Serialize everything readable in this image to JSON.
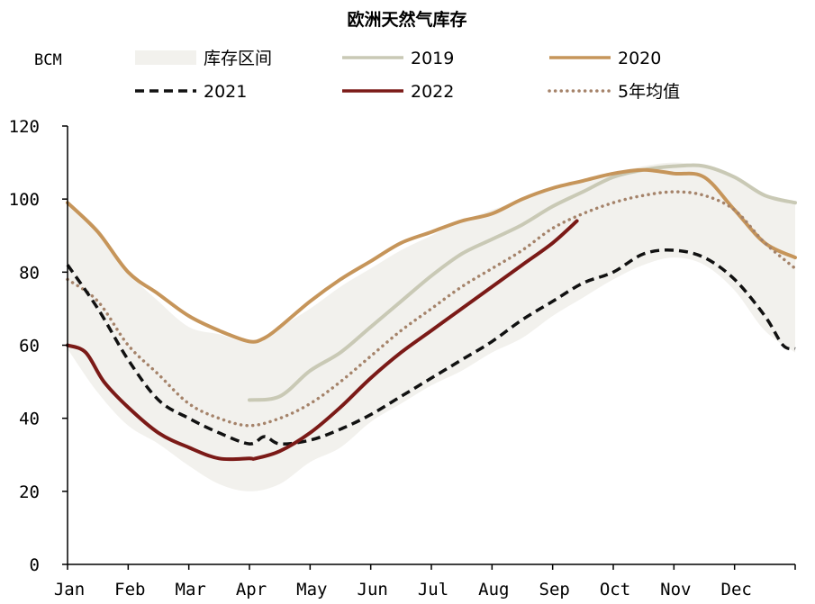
{
  "chart_data": {
    "type": "line",
    "title": "欧洲天然气库存",
    "unit_label": "BCM",
    "ylim": [
      0,
      120
    ],
    "yticks": [
      "0",
      "20",
      "40",
      "60",
      "80",
      "100",
      "120"
    ],
    "xlim": [
      0,
      12
    ],
    "categories": [
      "Jan",
      "Feb",
      "Mar",
      "Apr",
      "May",
      "Jun",
      "Jul",
      "Aug",
      "Sep",
      "Oct",
      "Nov",
      "Dec"
    ],
    "grid": false,
    "legend_position": "top",
    "legend": [
      {
        "label": "库存区间",
        "series": "range",
        "style": "band",
        "color": "#f2f1ed"
      },
      {
        "label": "2019",
        "series": "2019",
        "style": "solid",
        "color": "#c9c9b5"
      },
      {
        "label": "2020",
        "series": "2020",
        "style": "solid",
        "color": "#c6955a"
      },
      {
        "label": "2021",
        "series": "2021",
        "style": "dashed",
        "color": "#111111"
      },
      {
        "label": "2022",
        "series": "2022",
        "style": "solid",
        "color": "#7b1a17"
      },
      {
        "label": "5年均值",
        "series": "avg5",
        "style": "dotted",
        "color": "#a5836a"
      }
    ],
    "range_band": {
      "x": [
        0.0,
        0.5,
        1.0,
        1.5,
        2.0,
        2.5,
        3.0,
        3.5,
        4.0,
        4.5,
        5.0,
        5.5,
        6.0,
        6.5,
        7.0,
        7.5,
        8.0,
        8.5,
        9.0,
        9.5,
        10.0,
        10.5,
        11.0,
        11.5,
        12.0
      ],
      "upper": [
        99,
        92,
        80,
        72,
        65,
        63,
        61,
        65,
        70,
        76,
        81,
        86,
        90,
        94,
        97,
        100,
        103,
        105,
        107,
        109,
        110,
        109,
        106,
        101,
        99
      ],
      "lower": [
        59,
        47,
        38,
        33,
        27,
        22,
        20,
        22,
        28,
        32,
        39,
        44,
        49,
        53,
        58,
        62,
        68,
        73,
        78,
        82,
        84,
        82,
        75,
        64,
        58
      ]
    },
    "series": {
      "2019": {
        "x": [
          3.0,
          3.5,
          4.0,
          4.5,
          5.0,
          5.5,
          6.0,
          6.5,
          7.0,
          7.5,
          8.0,
          8.5,
          9.0,
          9.5,
          10.0,
          10.5,
          11.0,
          11.5,
          12.0
        ],
        "y": [
          45,
          46,
          53,
          58,
          65,
          72,
          79,
          85,
          89,
          93,
          98,
          102,
          106,
          108,
          109,
          109,
          106,
          101,
          99
        ]
      },
      "2020": {
        "x": [
          0.0,
          0.5,
          1.0,
          1.5,
          2.0,
          2.5,
          3.0,
          3.25,
          3.5,
          4.0,
          4.5,
          5.0,
          5.5,
          6.0,
          6.5,
          7.0,
          7.5,
          8.0,
          8.5,
          9.0,
          9.5,
          10.0,
          10.5,
          11.0,
          11.5,
          12.0
        ],
        "y": [
          99,
          91,
          80,
          74,
          68,
          64,
          61,
          62,
          65,
          72,
          78,
          83,
          88,
          91,
          94,
          96,
          100,
          103,
          105,
          107,
          108,
          107,
          106,
          97,
          88,
          84
        ]
      },
      "2021": {
        "x": [
          0.0,
          0.5,
          1.0,
          1.5,
          2.0,
          2.5,
          3.0,
          3.25,
          3.5,
          4.0,
          4.5,
          5.0,
          5.5,
          6.0,
          6.5,
          7.0,
          7.5,
          8.0,
          8.5,
          9.0,
          9.5,
          10.0,
          10.5,
          11.0,
          11.5,
          11.8,
          12.0
        ],
        "y": [
          82,
          70,
          56,
          45,
          40,
          36,
          33,
          35,
          33,
          34,
          37,
          41,
          46,
          51,
          56,
          61,
          67,
          72,
          77,
          80,
          85,
          86,
          84,
          78,
          68,
          60,
          59
        ]
      },
      "2022": {
        "x": [
          0.0,
          0.3,
          0.6,
          1.0,
          1.5,
          2.0,
          2.5,
          3.0,
          3.1,
          3.5,
          4.0,
          4.5,
          5.0,
          5.5,
          6.0,
          6.5,
          7.0,
          7.5,
          8.0,
          8.4
        ],
        "y": [
          60,
          58,
          50,
          43,
          36,
          32,
          29,
          29,
          29,
          31,
          36,
          43,
          51,
          58,
          64,
          70,
          76,
          82,
          88,
          94
        ]
      },
      "avg5": {
        "x": [
          0.0,
          0.5,
          1.0,
          1.5,
          2.0,
          2.5,
          3.0,
          3.5,
          4.0,
          4.5,
          5.0,
          5.5,
          6.0,
          6.5,
          7.0,
          7.5,
          8.0,
          8.5,
          9.0,
          9.5,
          10.0,
          10.5,
          11.0,
          11.5,
          12.0
        ],
        "y": [
          78,
          72,
          60,
          52,
          44,
          40,
          38,
          40,
          44,
          50,
          57,
          64,
          70,
          76,
          81,
          86,
          92,
          96,
          99,
          101,
          102,
          101,
          97,
          88,
          81
        ]
      }
    }
  }
}
